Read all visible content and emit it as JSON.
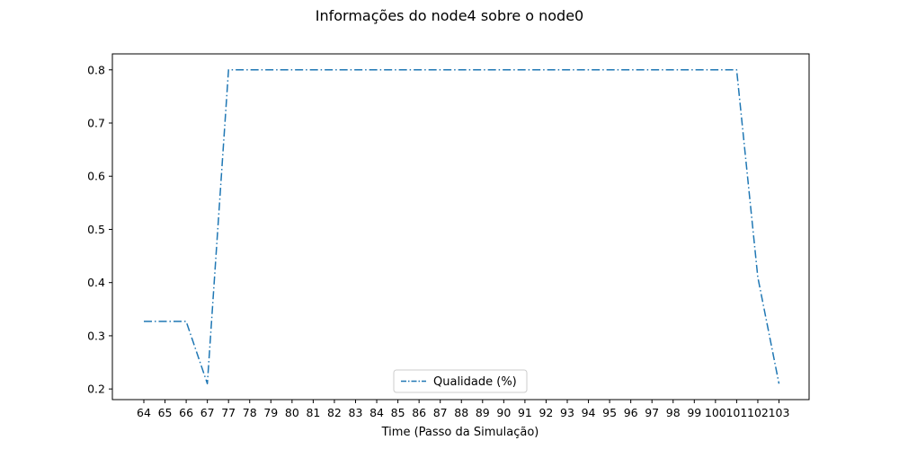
{
  "chart_data": {
    "type": "line",
    "title": "Informações do node4 sobre o node0",
    "xlabel": "Time (Passo da Simulação)",
    "ylabel": "",
    "categories": [
      "64",
      "65",
      "66",
      "67",
      "77",
      "78",
      "79",
      "80",
      "81",
      "82",
      "83",
      "84",
      "85",
      "86",
      "87",
      "88",
      "89",
      "90",
      "91",
      "92",
      "93",
      "94",
      "95",
      "96",
      "97",
      "98",
      "99",
      "100",
      "101",
      "102",
      "103"
    ],
    "series": [
      {
        "name": "Qualidade (%)",
        "color": "#1f77b4",
        "line_style": "dash-dot",
        "values": [
          0.327,
          0.327,
          0.327,
          0.21,
          0.8,
          0.8,
          0.8,
          0.8,
          0.8,
          0.8,
          0.8,
          0.8,
          0.8,
          0.8,
          0.8,
          0.8,
          0.8,
          0.8,
          0.8,
          0.8,
          0.8,
          0.8,
          0.8,
          0.8,
          0.8,
          0.8,
          0.8,
          0.8,
          0.8,
          0.41,
          0.21
        ]
      }
    ],
    "yticks": [
      "0.2",
      "0.3",
      "0.4",
      "0.5",
      "0.6",
      "0.7",
      "0.8"
    ],
    "ylim": [
      0.18,
      0.83
    ],
    "grid": false,
    "legend_position": "bottom-center"
  }
}
